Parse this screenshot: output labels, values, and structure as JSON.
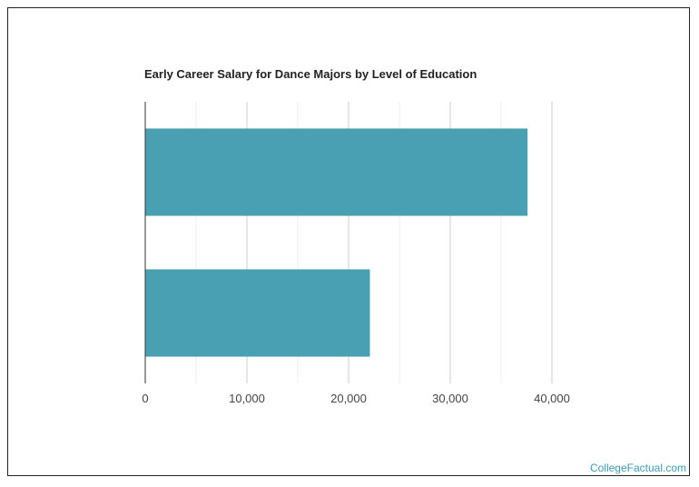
{
  "chart_data": {
    "type": "bar",
    "orientation": "horizontal",
    "title": "Early Career Salary for Dance Majors by Level of Education",
    "categories": [
      "",
      ""
    ],
    "values": [
      37600,
      22100
    ],
    "xlim": [
      0,
      40000
    ],
    "xticks": [
      0,
      10000,
      20000,
      30000,
      40000
    ],
    "xtick_labels": [
      "0",
      "10,000",
      "20,000",
      "30,000",
      "40,000"
    ],
    "grid": true,
    "bar_color": "#4aa0b3"
  },
  "brand": "CollegeFactual.com"
}
